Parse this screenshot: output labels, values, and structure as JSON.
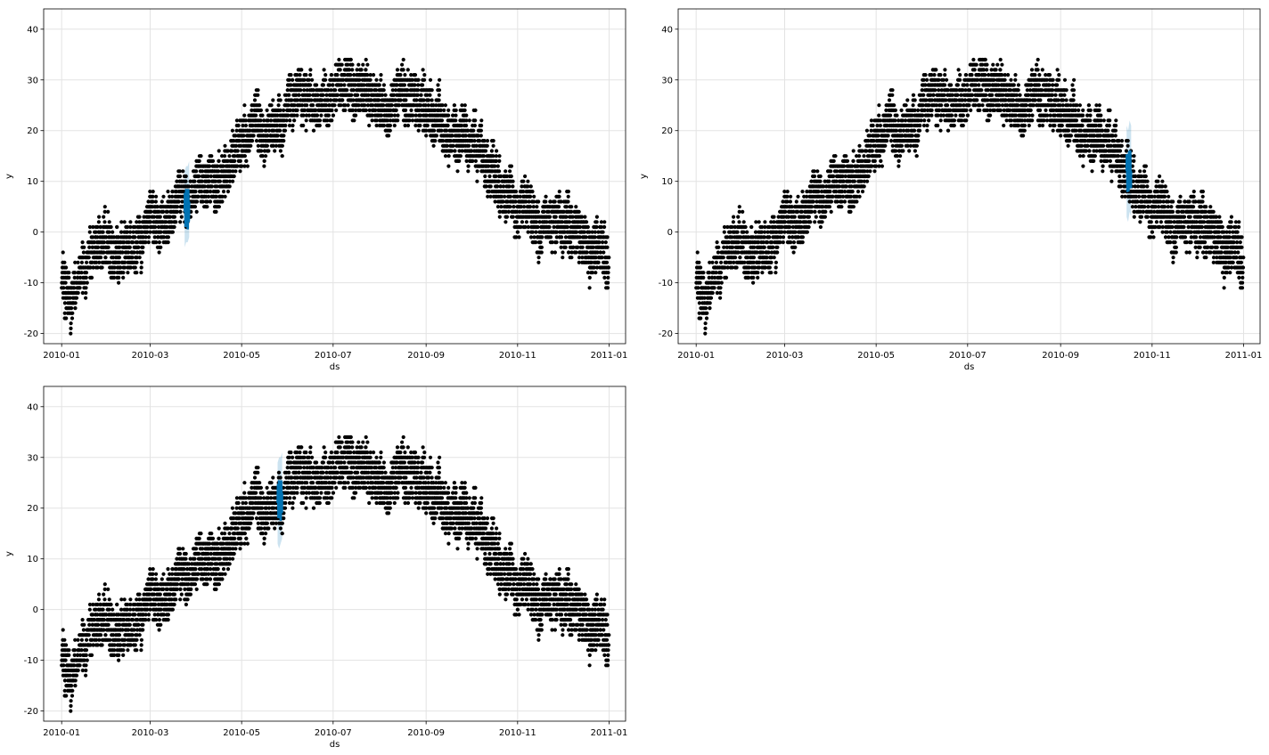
{
  "figure": {
    "background": "#ffffff"
  },
  "colors": {
    "points": "#000000",
    "forecast_line": "#0072B2",
    "forecast_band": "#0072B2",
    "grid": "#e3e3e3",
    "frame": "#000000"
  },
  "observed": {
    "start_date": "2010-01-01",
    "end_date": "2010-12-31",
    "points_per_day": 24,
    "daily_mean": [
      {
        "date": "2010-01-01",
        "y": -6
      },
      {
        "date": "2010-01-07",
        "y": -12
      },
      {
        "date": "2010-01-14",
        "y": -9
      },
      {
        "date": "2010-01-21",
        "y": -3
      },
      {
        "date": "2010-01-28",
        "y": -1
      },
      {
        "date": "2010-02-04",
        "y": -5
      },
      {
        "date": "2010-02-11",
        "y": -2
      },
      {
        "date": "2010-02-18",
        "y": -4
      },
      {
        "date": "2010-02-25",
        "y": 0
      },
      {
        "date": "2010-03-04",
        "y": 1
      },
      {
        "date": "2010-03-11",
        "y": 2
      },
      {
        "date": "2010-03-18",
        "y": 4
      },
      {
        "date": "2010-03-25",
        "y": 6
      },
      {
        "date": "2010-04-01",
        "y": 9
      },
      {
        "date": "2010-04-08",
        "y": 10
      },
      {
        "date": "2010-04-15",
        "y": 9
      },
      {
        "date": "2010-04-22",
        "y": 12
      },
      {
        "date": "2010-05-01",
        "y": 18
      },
      {
        "date": "2010-05-08",
        "y": 19
      },
      {
        "date": "2010-05-15",
        "y": 21
      },
      {
        "date": "2010-05-22",
        "y": 20
      },
      {
        "date": "2010-06-01",
        "y": 24
      },
      {
        "date": "2010-06-08",
        "y": 25
      },
      {
        "date": "2010-06-15",
        "y": 24
      },
      {
        "date": "2010-06-22",
        "y": 26
      },
      {
        "date": "2010-07-01",
        "y": 27
      },
      {
        "date": "2010-07-08",
        "y": 30
      },
      {
        "date": "2010-07-15",
        "y": 25
      },
      {
        "date": "2010-07-22",
        "y": 28
      },
      {
        "date": "2010-08-01",
        "y": 28
      },
      {
        "date": "2010-08-08",
        "y": 26
      },
      {
        "date": "2010-08-15",
        "y": 27
      },
      {
        "date": "2010-08-22",
        "y": 26
      },
      {
        "date": "2010-09-01",
        "y": 25
      },
      {
        "date": "2010-09-08",
        "y": 24
      },
      {
        "date": "2010-09-15",
        "y": 20
      },
      {
        "date": "2010-09-22",
        "y": 17
      },
      {
        "date": "2010-10-01",
        "y": 17
      },
      {
        "date": "2010-10-08",
        "y": 15
      },
      {
        "date": "2010-10-15",
        "y": 10
      },
      {
        "date": "2010-10-22",
        "y": 8
      },
      {
        "date": "2010-11-01",
        "y": 5
      },
      {
        "date": "2010-11-08",
        "y": 5
      },
      {
        "date": "2010-11-15",
        "y": 2
      },
      {
        "date": "2010-11-22",
        "y": 1
      },
      {
        "date": "2010-12-01",
        "y": 2
      },
      {
        "date": "2010-12-08",
        "y": -2
      },
      {
        "date": "2010-12-15",
        "y": -4
      },
      {
        "date": "2010-12-22",
        "y": -5
      },
      {
        "date": "2010-12-31",
        "y": -6
      }
    ],
    "daily_spread": 6
  },
  "chart_data": [
    {
      "type": "scatter",
      "title": "",
      "xlabel": "ds",
      "ylabel": "y",
      "xlim": [
        "2009-12-20",
        "2011-01-12"
      ],
      "ylim": [
        -22,
        44
      ],
      "xticks": [
        "2010-01",
        "2010-03",
        "2010-05",
        "2010-07",
        "2010-09",
        "2010-11",
        "2011-01"
      ],
      "yticks": [
        -20,
        -10,
        0,
        10,
        20,
        30,
        40
      ],
      "grid": true,
      "forecast": {
        "ds_start": "2010-03-24",
        "ds_end": "2010-03-27",
        "yhat": [
          4,
          5,
          4,
          6
        ],
        "yhat_lower": [
          -3,
          -2,
          -2,
          -1
        ],
        "yhat_upper": [
          12,
          13,
          13,
          14
        ]
      }
    },
    {
      "type": "scatter",
      "title": "",
      "xlabel": "ds",
      "ylabel": "y",
      "xlim": [
        "2009-12-20",
        "2011-01-12"
      ],
      "ylim": [
        -22,
        44
      ],
      "xticks": [
        "2010-01",
        "2010-03",
        "2010-05",
        "2010-07",
        "2010-09",
        "2010-11",
        "2011-01"
      ],
      "yticks": [
        -20,
        -10,
        0,
        10,
        20,
        30,
        40
      ],
      "grid": true,
      "forecast": {
        "ds_start": "2010-10-15",
        "ds_end": "2010-10-18",
        "yhat": [
          12,
          11,
          13,
          12
        ],
        "yhat_lower": [
          3,
          2,
          4,
          3
        ],
        "yhat_upper": [
          21,
          20,
          22,
          21
        ]
      }
    },
    {
      "type": "scatter",
      "title": "",
      "xlabel": "ds",
      "ylabel": "y",
      "xlim": [
        "2009-12-20",
        "2011-01-12"
      ],
      "ylim": [
        -22,
        44
      ],
      "xticks": [
        "2010-01",
        "2010-03",
        "2010-05",
        "2010-07",
        "2010-09",
        "2010-11",
        "2011-01"
      ],
      "yticks": [
        -20,
        -10,
        0,
        10,
        20,
        30,
        40
      ],
      "grid": true,
      "forecast": {
        "ds_start": "2010-05-25",
        "ds_end": "2010-05-28",
        "yhat": [
          21,
          22,
          21,
          23
        ],
        "yhat_lower": [
          13,
          12,
          13,
          14
        ],
        "yhat_upper": [
          29,
          30,
          30,
          31
        ]
      }
    }
  ]
}
